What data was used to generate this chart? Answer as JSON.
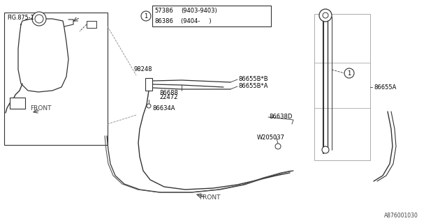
{
  "bg_color": "#ffffff",
  "fig_width": 6.4,
  "fig_height": 3.2,
  "lc": "#333333",
  "tc": "#000000",
  "fs": 6.0,
  "diagram_code": "A876001030",
  "legend": {
    "rows": [
      [
        "57386",
        "(9403-9403)"
      ],
      [
        "86386",
        "(9404-     )"
      ]
    ]
  },
  "parts": {
    "fig_ref": "FIG.875-1",
    "p98248": "98248",
    "p86688": "86688",
    "p22472": "22472",
    "p86655BB": "86655B*B",
    "p86655BA": "86655B*A",
    "p86634A": "86634A",
    "p86638D": "86638D",
    "pW205037": "W205037",
    "p86655A": "86655A"
  }
}
